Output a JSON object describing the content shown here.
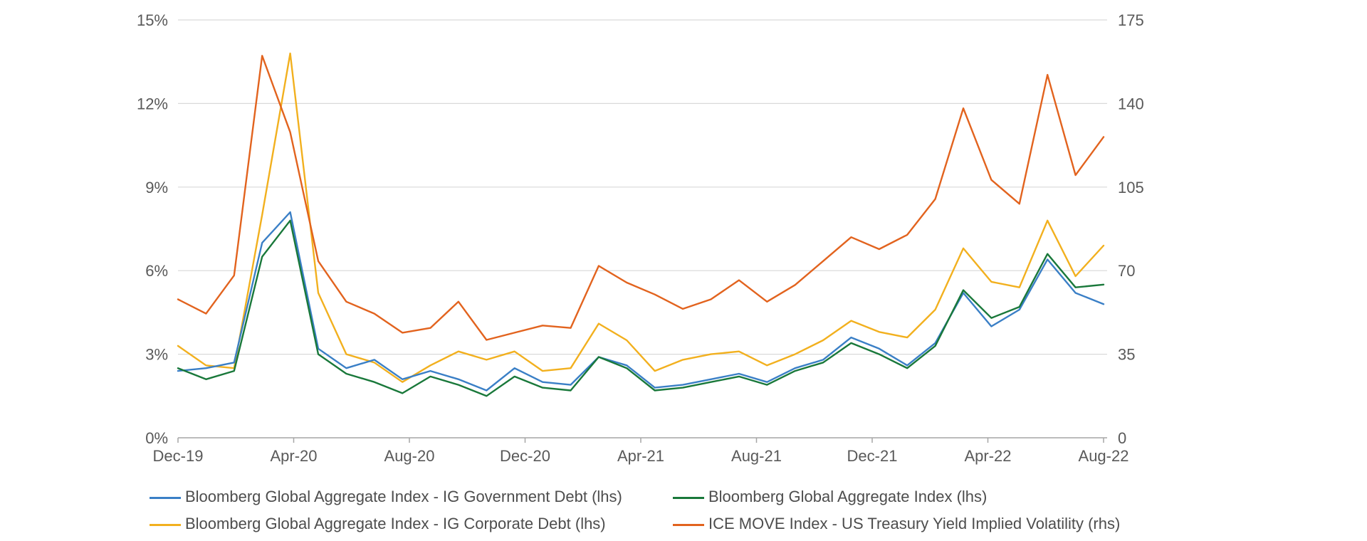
{
  "chart_data": {
    "type": "line",
    "title": "",
    "x_ticks": [
      "Dec-19",
      "Apr-20",
      "Aug-20",
      "Dec-20",
      "Apr-21",
      "Aug-21",
      "Dec-21",
      "Apr-22",
      "Aug-22"
    ],
    "y_left": {
      "ticks": [
        "0%",
        "3%",
        "6%",
        "9%",
        "12%",
        "15%"
      ],
      "range": [
        0,
        15
      ],
      "unit": "%"
    },
    "y_right": {
      "ticks": [
        "0",
        "35",
        "70",
        "105",
        "140",
        "175"
      ],
      "range": [
        0,
        175
      ]
    },
    "grid": "horizontal",
    "legend_position": "bottom",
    "x": [
      "Dec-19",
      "Jan-20",
      "Feb-20",
      "Mar-20",
      "Mar-20",
      "Apr-20",
      "May-20",
      "Jun-20",
      "Jul-20",
      "Aug-20",
      "Sep-20",
      "Oct-20",
      "Nov-20",
      "Dec-20",
      "Jan-21",
      "Feb-21",
      "Mar-21",
      "Apr-21",
      "May-21",
      "Jun-21",
      "Jul-21",
      "Aug-21",
      "Sep-21",
      "Oct-21",
      "Nov-21",
      "Dec-21",
      "Jan-22",
      "Feb-22",
      "Mar-22",
      "Apr-22",
      "May-22",
      "Jun-22",
      "Jul-22",
      "Aug-22"
    ],
    "series": [
      {
        "name": "Bloomberg Global Aggregate Index - IG Government Debt (lhs)",
        "axis": "left",
        "color": "#3a7fc6",
        "values": [
          2.4,
          2.5,
          2.7,
          7.0,
          8.1,
          3.2,
          2.5,
          2.8,
          2.1,
          2.4,
          2.1,
          1.7,
          2.5,
          2.0,
          1.9,
          2.9,
          2.6,
          1.8,
          1.9,
          2.1,
          2.3,
          2.0,
          2.5,
          2.8,
          3.6,
          3.2,
          2.6,
          3.4,
          5.2,
          4.0,
          4.6,
          6.4,
          5.2,
          4.8
        ]
      },
      {
        "name": "Bloomberg Global Aggregate Index (lhs)",
        "axis": "left",
        "color": "#19783a",
        "values": [
          2.5,
          2.1,
          2.4,
          6.5,
          7.8,
          3.0,
          2.3,
          2.0,
          1.6,
          2.2,
          1.9,
          1.5,
          2.2,
          1.8,
          1.7,
          2.9,
          2.5,
          1.7,
          1.8,
          2.0,
          2.2,
          1.9,
          2.4,
          2.7,
          3.4,
          3.0,
          2.5,
          3.3,
          5.3,
          4.3,
          4.7,
          6.6,
          5.4,
          5.5
        ]
      },
      {
        "name": "Bloomberg Global Aggregate Index - IG Corporate Debt (lhs)",
        "axis": "left",
        "color": "#f2b01e",
        "values": [
          3.3,
          2.6,
          2.5,
          8.0,
          13.8,
          5.2,
          3.0,
          2.7,
          2.0,
          2.6,
          3.1,
          2.8,
          3.1,
          2.4,
          2.5,
          4.1,
          3.5,
          2.4,
          2.8,
          3.0,
          3.1,
          2.6,
          3.0,
          3.5,
          4.2,
          3.8,
          3.6,
          4.6,
          6.8,
          5.6,
          5.4,
          7.8,
          5.8,
          6.9
        ]
      },
      {
        "name": "ICE MOVE Index - US Treasury Yield Implied Volatility (rhs)",
        "axis": "right",
        "color": "#e2631e",
        "values": [
          58,
          52,
          68,
          160,
          128,
          74,
          57,
          52,
          44,
          46,
          57,
          41,
          44,
          47,
          46,
          72,
          65,
          60,
          54,
          58,
          66,
          57,
          64,
          74,
          84,
          79,
          85,
          100,
          138,
          108,
          98,
          152,
          110,
          126
        ]
      }
    ]
  },
  "legend": [
    {
      "label": "Bloomberg Global Aggregate Index - IG Government Debt (lhs)",
      "color": "#3a7fc6"
    },
    {
      "label": "Bloomberg Global Aggregate Index (lhs)",
      "color": "#19783a"
    },
    {
      "label": "Bloomberg Global Aggregate Index - IG Corporate Debt (lhs)",
      "color": "#f2b01e"
    },
    {
      "label": "ICE MOVE Index - US Treasury Yield Implied Volatility (rhs)",
      "color": "#e2631e"
    }
  ]
}
